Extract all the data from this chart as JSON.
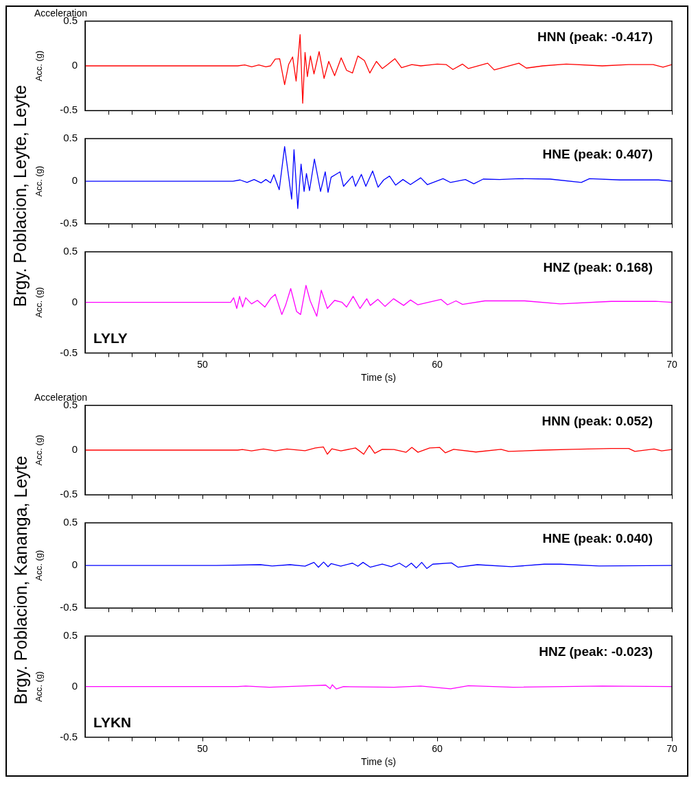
{
  "chart_data": [
    {
      "type": "line",
      "title": "Acceleration",
      "ylabel": "Acc. (g)",
      "annotations": [
        "HNN (peak: -0.417)",
        "Brgy. Poblacion, Leyte, Leyte"
      ],
      "xlim": [
        45,
        70
      ],
      "xticks": [
        {
          "value": 46,
          "label": null
        },
        {
          "value": 47,
          "label": null
        },
        {
          "value": 48,
          "label": null
        },
        {
          "value": 49,
          "label": null
        },
        50,
        {
          "value": 51,
          "label": null
        },
        {
          "value": 52,
          "label": null
        },
        {
          "value": 53,
          "label": null
        },
        {
          "value": 54,
          "label": null
        },
        {
          "value": 55,
          "label": null
        },
        {
          "value": 56,
          "label": null
        },
        {
          "value": 57,
          "label": null
        },
        {
          "value": 58,
          "label": null
        },
        {
          "value": 59,
          "label": null
        },
        60,
        {
          "value": 61,
          "label": null
        },
        {
          "value": 62,
          "label": null
        },
        {
          "value": 63,
          "label": null
        },
        {
          "value": 64,
          "label": null
        },
        {
          "value": 65,
          "label": null
        },
        {
          "value": 66,
          "label": null
        },
        {
          "value": 67,
          "label": null
        },
        {
          "value": 68,
          "label": null
        },
        {
          "value": 69,
          "label": null
        },
        70
      ],
      "ylim": [
        -0.5,
        0.5
      ],
      "yticks": [
        -0.5,
        0,
        0.5
      ],
      "tick_labels": "y",
      "series": [
        {
          "color": "#ff0000",
          "x": [
            45,
            51.5,
            51.8,
            52.1,
            52.4,
            52.7,
            52.9,
            53.1,
            53.29,
            53.5,
            53.67,
            53.84,
            53.99,
            54.16,
            54.27,
            54.37,
            54.47,
            54.6,
            54.75,
            54.97,
            55.18,
            55.38,
            55.63,
            55.91,
            56.14,
            56.39,
            56.62,
            56.9,
            57.13,
            57.41,
            57.66,
            57.89,
            58.2,
            58.48,
            58.92,
            59.3,
            59.68,
            60,
            60.38,
            60.67,
            61.08,
            61.33,
            62.15,
            62.43,
            63.48,
            63.8,
            64.5,
            65.5,
            67.03,
            68.16,
            69.2,
            69.62,
            70
          ],
          "values": [
            0,
            0,
            0.01,
            -0.01,
            0.01,
            -0.01,
            0,
            0.076,
            0.08,
            -0.21,
            0.015,
            0.1,
            -0.17,
            0.35,
            -0.417,
            0.15,
            -0.12,
            0.11,
            -0.09,
            0.16,
            -0.14,
            0.05,
            -0.11,
            0.09,
            -0.05,
            -0.08,
            0.11,
            0.06,
            -0.08,
            0.05,
            -0.03,
            0.015,
            0.08,
            -0.02,
            0.015,
            0,
            0.01,
            0.02,
            0.015,
            -0.04,
            0.02,
            -0.03,
            0.03,
            -0.045,
            0.03,
            -0.025,
            0,
            0.02,
            0,
            0.015,
            0.015,
            -0.015,
            0.015
          ]
        }
      ]
    },
    {
      "type": "line",
      "ylabel": "Acc. (g)",
      "annotations": [
        "HNE (peak: 0.407)"
      ],
      "xlim": [
        45,
        70
      ],
      "xticks": [
        {
          "value": 46,
          "label": null
        },
        {
          "value": 47,
          "label": null
        },
        {
          "value": 48,
          "label": null
        },
        {
          "value": 49,
          "label": null
        },
        50,
        {
          "value": 51,
          "label": null
        },
        {
          "value": 52,
          "label": null
        },
        {
          "value": 53,
          "label": null
        },
        {
          "value": 54,
          "label": null
        },
        {
          "value": 55,
          "label": null
        },
        {
          "value": 56,
          "label": null
        },
        {
          "value": 57,
          "label": null
        },
        {
          "value": 58,
          "label": null
        },
        {
          "value": 59,
          "label": null
        },
        60,
        {
          "value": 61,
          "label": null
        },
        {
          "value": 62,
          "label": null
        },
        {
          "value": 63,
          "label": null
        },
        {
          "value": 64,
          "label": null
        },
        {
          "value": 65,
          "label": null
        },
        {
          "value": 66,
          "label": null
        },
        {
          "value": 67,
          "label": null
        },
        {
          "value": 68,
          "label": null
        },
        {
          "value": 69,
          "label": null
        },
        70
      ],
      "ylim": [
        -0.5,
        0.5
      ],
      "yticks": [
        -0.5,
        0,
        0.5
      ],
      "tick_labels": "y",
      "series": [
        {
          "color": "#0000ff",
          "x": [
            45,
            51.3,
            51.6,
            51.9,
            52.2,
            52.5,
            52.7,
            52.9,
            53.04,
            53.27,
            53.5,
            53.8,
            53.9,
            54.06,
            54.2,
            54.33,
            54.43,
            54.56,
            54.77,
            55.03,
            55.23,
            55.35,
            55.48,
            55.86,
            56.01,
            56.39,
            56.52,
            56.77,
            56.96,
            57.25,
            57.48,
            57.72,
            57.97,
            58.23,
            58.54,
            58.86,
            59.3,
            59.58,
            60.25,
            60.57,
            61.2,
            61.56,
            61.96,
            62.66,
            63.48,
            64.81,
            66.14,
            66.49,
            67.78,
            69.43,
            70
          ],
          "values": [
            0,
            0,
            0.015,
            -0.015,
            0.02,
            -0.02,
            0.02,
            -0.02,
            0.076,
            -0.1,
            0.407,
            -0.21,
            0.37,
            -0.32,
            0.2,
            -0.12,
            0.09,
            -0.11,
            0.26,
            -0.12,
            0.11,
            -0.13,
            0.046,
            0.11,
            -0.06,
            0.06,
            -0.06,
            0.08,
            -0.06,
            0.12,
            -0.07,
            0.015,
            0.06,
            -0.046,
            0.02,
            -0.04,
            0.04,
            -0.04,
            0.03,
            -0.015,
            0.02,
            -0.03,
            0.025,
            0.02,
            0.03,
            0.025,
            -0.015,
            0.03,
            0.015,
            0.015,
            0
          ]
        }
      ]
    },
    {
      "type": "line",
      "xlabel": "Time (s)",
      "ylabel": "Acc. (g)",
      "annotations": [
        "HNZ (peak: 0.168)",
        "LYLY"
      ],
      "xlim": [
        45,
        70
      ],
      "xticks": [
        {
          "value": 46,
          "label": null
        },
        {
          "value": 47,
          "label": null
        },
        {
          "value": 48,
          "label": null
        },
        {
          "value": 49,
          "label": null
        },
        50,
        {
          "value": 51,
          "label": null
        },
        {
          "value": 52,
          "label": null
        },
        {
          "value": 53,
          "label": null
        },
        {
          "value": 54,
          "label": null
        },
        {
          "value": 55,
          "label": null
        },
        {
          "value": 56,
          "label": null
        },
        {
          "value": 57,
          "label": null
        },
        {
          "value": 58,
          "label": null
        },
        {
          "value": 59,
          "label": null
        },
        60,
        {
          "value": 61,
          "label": null
        },
        {
          "value": 62,
          "label": null
        },
        {
          "value": 63,
          "label": null
        },
        {
          "value": 64,
          "label": null
        },
        {
          "value": 65,
          "label": null
        },
        {
          "value": 66,
          "label": null
        },
        {
          "value": 67,
          "label": null
        },
        {
          "value": 68,
          "label": null
        },
        {
          "value": 69,
          "label": null
        },
        70
      ],
      "ylim": [
        -0.5,
        0.5
      ],
      "yticks": [
        -0.5,
        0,
        0.5
      ],
      "series": [
        {
          "color": "#ff00ff",
          "x": [
            45,
            51.2,
            51.33,
            51.46,
            51.58,
            51.71,
            51.84,
            52.09,
            52.34,
            52.66,
            52.91,
            53.1,
            53.38,
            53.54,
            53.76,
            54.01,
            54.18,
            54.41,
            54.59,
            54.87,
            55.06,
            55.32,
            55.63,
            55.95,
            56.14,
            56.42,
            56.71,
            57,
            57.15,
            57.47,
            57.78,
            58.14,
            58.57,
            58.86,
            59.18,
            60.16,
            60.44,
            60.8,
            61.08,
            62.03,
            63.73,
            65.25,
            67.41,
            69.3,
            70
          ],
          "values": [
            0,
            0,
            0.046,
            -0.06,
            0.06,
            -0.046,
            0.046,
            -0.015,
            0.02,
            -0.046,
            0.04,
            0.08,
            -0.12,
            -0.03,
            0.137,
            -0.09,
            -0.12,
            0.168,
            0.015,
            -0.137,
            0.12,
            -0.06,
            0.02,
            0,
            -0.046,
            0.06,
            -0.06,
            0.036,
            -0.03,
            0.03,
            -0.04,
            0.036,
            -0.03,
            0.024,
            -0.024,
            0.03,
            -0.024,
            0.015,
            -0.02,
            0.015,
            0.015,
            -0.015,
            0.01,
            0.01,
            0
          ]
        }
      ]
    },
    {
      "type": "line",
      "title": "Acceleration",
      "ylabel": "Acc. (g)",
      "annotations": [
        "HNN (peak: 0.052)",
        "Brgy. Poblacion, Kananga, Leyte"
      ],
      "xlim": [
        45,
        70
      ],
      "xticks": [
        {
          "value": 46,
          "label": null
        },
        {
          "value": 47,
          "label": null
        },
        {
          "value": 48,
          "label": null
        },
        {
          "value": 49,
          "label": null
        },
        50,
        {
          "value": 51,
          "label": null
        },
        {
          "value": 52,
          "label": null
        },
        {
          "value": 53,
          "label": null
        },
        {
          "value": 54,
          "label": null
        },
        {
          "value": 55,
          "label": null
        },
        {
          "value": 56,
          "label": null
        },
        {
          "value": 57,
          "label": null
        },
        {
          "value": 58,
          "label": null
        },
        {
          "value": 59,
          "label": null
        },
        60,
        {
          "value": 61,
          "label": null
        },
        {
          "value": 62,
          "label": null
        },
        {
          "value": 63,
          "label": null
        },
        {
          "value": 64,
          "label": null
        },
        {
          "value": 65,
          "label": null
        },
        {
          "value": 66,
          "label": null
        },
        {
          "value": 67,
          "label": null
        },
        {
          "value": 68,
          "label": null
        },
        {
          "value": 69,
          "label": null
        },
        70
      ],
      "ylim": [
        -0.5,
        0.5
      ],
      "yticks": [
        -0.5,
        0,
        0.5
      ],
      "tick_labels": "y",
      "series": [
        {
          "color": "#ff0000",
          "x": [
            45,
            51.5,
            51.7,
            52.09,
            52.6,
            53.1,
            53.6,
            54.37,
            54.81,
            55.15,
            55.32,
            55.51,
            55.9,
            56.52,
            56.87,
            57.11,
            57.34,
            57.66,
            58.16,
            58.67,
            58.92,
            59.18,
            59.68,
            60.1,
            60.35,
            60.7,
            61.65,
            62.72,
            63.04,
            64.5,
            65.76,
            67.41,
            68.16,
            68.42,
            69.24,
            69.56,
            70
          ],
          "values": [
            0,
            0,
            0.006,
            -0.009,
            0.012,
            -0.009,
            0.012,
            -0.006,
            0.024,
            0.036,
            -0.046,
            0.015,
            -0.009,
            0.024,
            -0.046,
            0.052,
            -0.036,
            0.009,
            0.006,
            -0.024,
            0.03,
            -0.024,
            0.024,
            0.03,
            -0.03,
            0.009,
            -0.021,
            0.009,
            -0.015,
            0,
            0.009,
            0.018,
            0.018,
            -0.015,
            0.012,
            -0.009,
            0.006
          ]
        }
      ]
    },
    {
      "type": "line",
      "ylabel": "Acc. (g)",
      "annotations": [
        "HNE (peak: 0.040)"
      ],
      "xlim": [
        45,
        70
      ],
      "xticks": [
        {
          "value": 46,
          "label": null
        },
        {
          "value": 47,
          "label": null
        },
        {
          "value": 48,
          "label": null
        },
        {
          "value": 49,
          "label": null
        },
        50,
        {
          "value": 51,
          "label": null
        },
        {
          "value": 52,
          "label": null
        },
        {
          "value": 53,
          "label": null
        },
        {
          "value": 54,
          "label": null
        },
        {
          "value": 55,
          "label": null
        },
        {
          "value": 56,
          "label": null
        },
        {
          "value": 57,
          "label": null
        },
        {
          "value": 58,
          "label": null
        },
        {
          "value": 59,
          "label": null
        },
        60,
        {
          "value": 61,
          "label": null
        },
        {
          "value": 62,
          "label": null
        },
        {
          "value": 63,
          "label": null
        },
        {
          "value": 64,
          "label": null
        },
        {
          "value": 65,
          "label": null
        },
        {
          "value": 66,
          "label": null
        },
        {
          "value": 67,
          "label": null
        },
        {
          "value": 68,
          "label": null
        },
        {
          "value": 69,
          "label": null
        },
        70
      ],
      "ylim": [
        -0.5,
        0.5
      ],
      "yticks": [
        -0.5,
        0,
        0.5
      ],
      "tick_labels": "y",
      "series": [
        {
          "color": "#0000ff",
          "x": [
            45,
            50.6,
            52.47,
            52.97,
            53.73,
            54.37,
            54.75,
            54.94,
            55.16,
            55.35,
            55.48,
            55.89,
            56.39,
            56.62,
            56.84,
            57.15,
            57.66,
            58.04,
            58.39,
            58.67,
            58.9,
            59.11,
            59.34,
            59.56,
            59.81,
            60.61,
            60.89,
            61.71,
            63.16,
            64.56,
            65.26,
            66.9,
            70
          ],
          "values": [
            0,
            0,
            0.009,
            -0.006,
            0.009,
            -0.009,
            0.036,
            -0.021,
            0.04,
            -0.015,
            0.021,
            -0.009,
            0.027,
            -0.009,
            0.036,
            -0.021,
            0.015,
            -0.015,
            0.027,
            -0.021,
            0.027,
            -0.03,
            0.036,
            -0.036,
            0.015,
            0.03,
            -0.021,
            0.009,
            -0.015,
            0.015,
            0.015,
            -0.006,
            0
          ]
        }
      ]
    },
    {
      "type": "line",
      "xlabel": "Time (s)",
      "ylabel": "Acc. (g)",
      "annotations": [
        "HNZ (peak: -0.023)",
        "LYKN"
      ],
      "xlim": [
        45,
        70
      ],
      "xticks": [
        {
          "value": 46,
          "label": null
        },
        {
          "value": 47,
          "label": null
        },
        {
          "value": 48,
          "label": null
        },
        {
          "value": 49,
          "label": null
        },
        50,
        {
          "value": 51,
          "label": null
        },
        {
          "value": 52,
          "label": null
        },
        {
          "value": 53,
          "label": null
        },
        {
          "value": 54,
          "label": null
        },
        {
          "value": 55,
          "label": null
        },
        {
          "value": 56,
          "label": null
        },
        {
          "value": 57,
          "label": null
        },
        {
          "value": 58,
          "label": null
        },
        {
          "value": 59,
          "label": null
        },
        60,
        {
          "value": 61,
          "label": null
        },
        {
          "value": 62,
          "label": null
        },
        {
          "value": 63,
          "label": null
        },
        {
          "value": 64,
          "label": null
        },
        {
          "value": 65,
          "label": null
        },
        {
          "value": 66,
          "label": null
        },
        {
          "value": 67,
          "label": null
        },
        {
          "value": 68,
          "label": null
        },
        {
          "value": 69,
          "label": null
        },
        70
      ],
      "ylim": [
        -0.5,
        0.5
      ],
      "yticks": [
        -0.5,
        0,
        0.5
      ],
      "series": [
        {
          "color": "#ff00ff",
          "x": [
            45,
            51.5,
            51.84,
            52.85,
            54.62,
            55.25,
            55.44,
            55.53,
            55.7,
            56.01,
            58.16,
            59.3,
            60.57,
            61.33,
            63.23,
            67.03,
            70
          ],
          "values": [
            0,
            0,
            0.006,
            -0.006,
            0.009,
            0.015,
            -0.021,
            0.018,
            -0.023,
            0,
            -0.006,
            0.006,
            -0.021,
            0.009,
            -0.006,
            0.006,
            0
          ]
        }
      ]
    }
  ]
}
